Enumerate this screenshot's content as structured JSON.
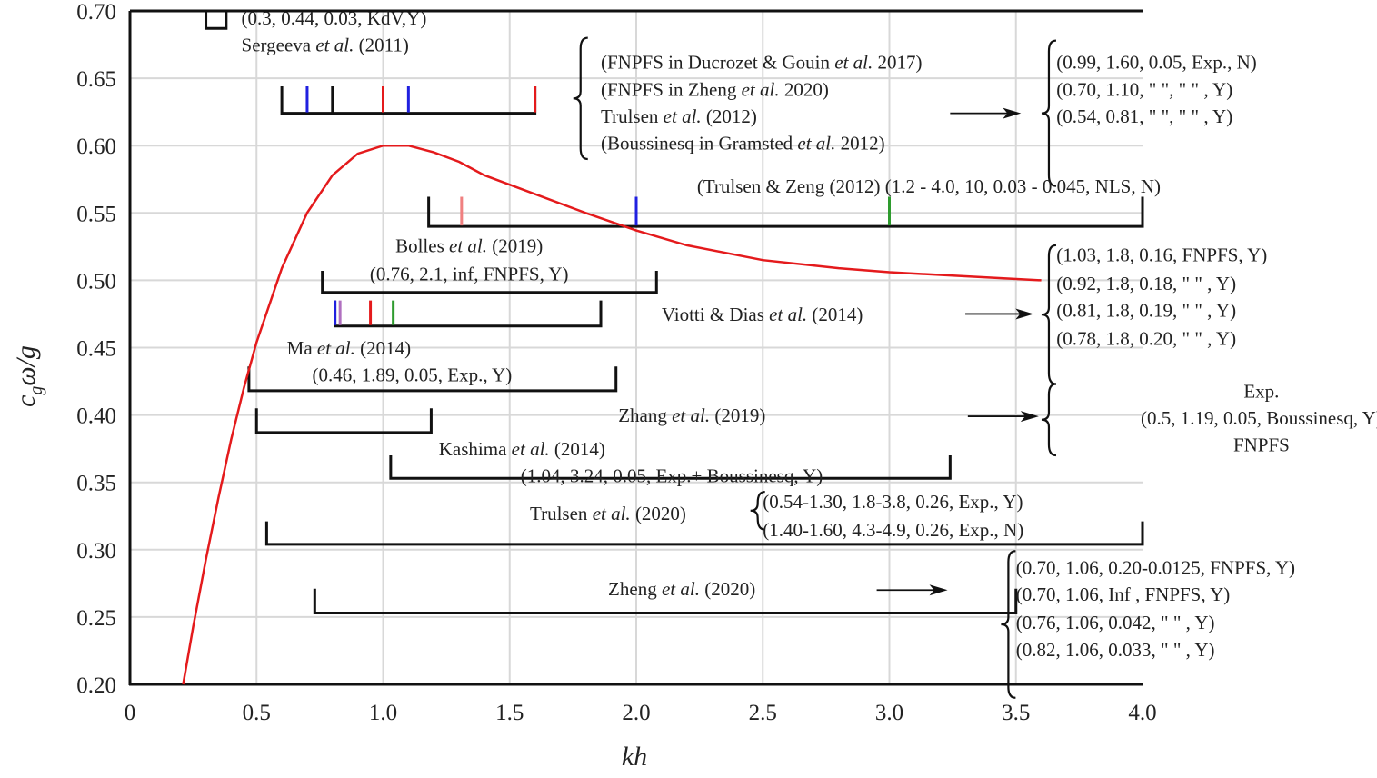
{
  "chart_data": {
    "type": "line",
    "xlabel": "kh",
    "ylabel": "cgω/g",
    "xlim": [
      0,
      4.0
    ],
    "ylim": [
      0.2,
      0.7
    ],
    "grid": true,
    "x_ticks": [
      "0",
      "0.5",
      "1.0",
      "1.5",
      "2.0",
      "2.5",
      "3.0",
      "3.5",
      "4.0"
    ],
    "y_ticks": [
      "0.20",
      "0.25",
      "0.30",
      "0.35",
      "0.40",
      "0.45",
      "0.50",
      "0.55",
      "0.60",
      "0.65",
      "0.70"
    ],
    "curve": {
      "color": "#e41a1c",
      "x": [
        0.21,
        0.25,
        0.3,
        0.35,
        0.4,
        0.45,
        0.5,
        0.6,
        0.7,
        0.8,
        0.9,
        1.0,
        1.1,
        1.2,
        1.3,
        1.4,
        1.6,
        1.8,
        2.0,
        2.2,
        2.5,
        2.8,
        3.0,
        3.3,
        3.6
      ],
      "y": [
        0.2,
        0.243,
        0.293,
        0.339,
        0.382,
        0.42,
        0.454,
        0.509,
        0.55,
        0.578,
        0.594,
        0.6,
        0.6,
        0.595,
        0.588,
        0.578,
        0.564,
        0.55,
        0.537,
        0.526,
        0.515,
        0.509,
        0.506,
        0.503,
        0.5
      ]
    },
    "brackets": [
      {
        "x0": 0.3,
        "x1": 0.38,
        "y": 0.687,
        "tick_height": 0.013,
        "ticks": []
      },
      {
        "x0": 0.6,
        "x1": 1.6,
        "y": 0.624,
        "tick_height": 0.02,
        "ticks": [
          {
            "x": 0.7,
            "color": "#2020e0"
          },
          {
            "x": 0.8,
            "color": "#111111"
          },
          {
            "x": 1.0,
            "color": "#e41a1c"
          },
          {
            "x": 1.1,
            "color": "#2020e0"
          },
          {
            "x": 1.6,
            "color": "#e41a1c"
          }
        ]
      },
      {
        "x0": 1.18,
        "x1": 4.0,
        "y": 0.54,
        "tick_height": 0.022,
        "ticks": [
          {
            "x": 1.31,
            "color": "#f08080"
          },
          {
            "x": 2.0,
            "color": "#2020e0"
          },
          {
            "x": 3.0,
            "color": "#2e9b2e"
          }
        ]
      },
      {
        "x0": 0.76,
        "x1": 2.08,
        "y": 0.491,
        "tick_height": 0.016,
        "ticks": []
      },
      {
        "x0": 0.81,
        "x1": 1.86,
        "y": 0.466,
        "tick_height": 0.019,
        "ticks": [
          {
            "x": 0.81,
            "color": "#2020e0"
          },
          {
            "x": 0.83,
            "color": "#b070c0"
          },
          {
            "x": 0.95,
            "color": "#e41a1c"
          },
          {
            "x": 1.04,
            "color": "#2e9b2e"
          }
        ]
      },
      {
        "x0": 0.47,
        "x1": 1.92,
        "y": 0.418,
        "tick_height": 0.018,
        "ticks": []
      },
      {
        "x0": 0.5,
        "x1": 1.19,
        "y": 0.387,
        "tick_height": 0.018,
        "ticks": []
      },
      {
        "x0": 1.03,
        "x1": 3.24,
        "y": 0.353,
        "tick_height": 0.017,
        "ticks": []
      },
      {
        "x0": 0.54,
        "x1": 4.0,
        "y": 0.304,
        "tick_height": 0.017,
        "ticks": []
      },
      {
        "x0": 0.73,
        "x1": 3.5,
        "y": 0.253,
        "tick_height": 0.018,
        "ticks": []
      }
    ],
    "arrows": [
      {
        "x0": 3.24,
        "x1": 3.52,
        "y": 0.624
      },
      {
        "x0": 3.3,
        "x1": 3.57,
        "y": 0.475
      },
      {
        "x0": 3.31,
        "x1": 3.59,
        "y": 0.399
      },
      {
        "x0": 2.95,
        "x1": 3.23,
        "y": 0.27
      }
    ],
    "curly_braces": [
      {
        "x": 1.78,
        "y_top": 0.68,
        "y_bottom": 0.59
      },
      {
        "x": 3.63,
        "y_top": 0.678,
        "y_bottom": 0.57
      },
      {
        "x": 3.63,
        "y_top": 0.526,
        "y_bottom": 0.423
      },
      {
        "x": 3.63,
        "y_top": 0.423,
        "y_bottom": 0.37
      },
      {
        "x": 2.48,
        "y_top": 0.343,
        "y_bottom": 0.315
      },
      {
        "x": 3.47,
        "y_top": 0.299,
        "y_bottom": 0.19
      }
    ],
    "annotations": [
      {
        "text": "(0.3, 0.44, 0.03, KdV,Y)",
        "x": 0.44,
        "y": 0.69,
        "anchor": "start"
      },
      {
        "text": "Sergeeva et al. (2011)",
        "x": 0.44,
        "y": 0.67,
        "anchor": "start"
      },
      {
        "text": "(FNPFS in Ducrozet & Gouin et al. 2017)",
        "x": 1.86,
        "y": 0.657,
        "anchor": "start"
      },
      {
        "text": "(FNPFS in Zheng et al. 2020)",
        "x": 1.86,
        "y": 0.637,
        "anchor": "start"
      },
      {
        "text": "Trulsen et al. (2012)",
        "x": 1.86,
        "y": 0.617,
        "anchor": "start"
      },
      {
        "text": "(Boussinesq in Gramsted et al. 2012)",
        "x": 1.86,
        "y": 0.597,
        "anchor": "start"
      },
      {
        "text": "(0.99, 1.60, 0.05, Exp., N)",
        "x": 3.66,
        "y": 0.657,
        "anchor": "start"
      },
      {
        "text": "(0.70, 1.10, \" \", \" \" , Y)",
        "x": 3.66,
        "y": 0.637,
        "anchor": "start"
      },
      {
        "text": "(0.54, 0.81, \" \", \" \" , Y)",
        "x": 3.66,
        "y": 0.617,
        "anchor": "start"
      },
      {
        "text": "(Trulsen & Zeng (2012) (1.2 - 4.0, 10, 0.03 - 0.045, NLS, N)",
        "x": 2.24,
        "y": 0.565,
        "anchor": "start"
      },
      {
        "text": "Bolles et al. (2019)",
        "x": 1.34,
        "y": 0.521,
        "anchor": "middle"
      },
      {
        "text": "(0.76, 2.1, inf, FNPFS, Y)",
        "x": 1.34,
        "y": 0.5,
        "anchor": "middle"
      },
      {
        "text": "Viotti & Dias et al. (2014)",
        "x": 2.1,
        "y": 0.47,
        "anchor": "start"
      },
      {
        "text": "(1.03, 1.8, 0.16, FNPFS, Y)",
        "x": 3.66,
        "y": 0.514,
        "anchor": "start"
      },
      {
        "text": "(0.92, 1.8, 0.18, \" \" , Y)",
        "x": 3.66,
        "y": 0.493,
        "anchor": "start"
      },
      {
        "text": "(0.81, 1.8, 0.19, \" \" , Y)",
        "x": 3.66,
        "y": 0.473,
        "anchor": "start"
      },
      {
        "text": "(0.78, 1.8, 0.20, \" \" , Y)",
        "x": 3.66,
        "y": 0.452,
        "anchor": "start"
      },
      {
        "text": "Ma et al. (2014)",
        "x": 0.62,
        "y": 0.445,
        "anchor": "start"
      },
      {
        "text": "(0.46, 1.89, 0.05, Exp., Y)",
        "x": 0.72,
        "y": 0.425,
        "anchor": "start"
      },
      {
        "text": "Zhang et al. (2019)",
        "x": 2.22,
        "y": 0.395,
        "anchor": "middle"
      },
      {
        "text": "Exp.",
        "x": 4.47,
        "y": 0.413,
        "anchor": "middle"
      },
      {
        "text": "(0.5, 1.19, 0.05, Boussinesq, Y)",
        "x": 4.47,
        "y": 0.393,
        "anchor": "middle"
      },
      {
        "text": "FNPFS",
        "x": 4.47,
        "y": 0.373,
        "anchor": "middle"
      },
      {
        "text": "Kashima et al. (2014)",
        "x": 1.22,
        "y": 0.37,
        "anchor": "start"
      },
      {
        "text": "(1.04, 3.24, 0.05, Exp.+ Boussinesq, Y)",
        "x": 2.14,
        "y": 0.35,
        "anchor": "middle"
      },
      {
        "text": "(0.54-1.30, 1.8-3.8, 0.26, Exp., Y)",
        "x": 2.5,
        "y": 0.331,
        "anchor": "start"
      },
      {
        "text": "Trulsen et al. (2020)",
        "x": 1.58,
        "y": 0.322,
        "anchor": "start"
      },
      {
        "text": "(1.40-1.60, 4.3-4.9, 0.26, Exp., N)",
        "x": 2.5,
        "y": 0.31,
        "anchor": "start"
      },
      {
        "text": "Zheng et al. (2020)",
        "x": 2.18,
        "y": 0.266,
        "anchor": "middle"
      },
      {
        "text": "(0.70, 1.06, 0.20-0.0125, FNPFS, Y)",
        "x": 3.5,
        "y": 0.282,
        "anchor": "start"
      },
      {
        "text": "(0.70, 1.06, Inf , FNPFS, Y)",
        "x": 3.5,
        "y": 0.262,
        "anchor": "start"
      },
      {
        "text": "(0.76, 1.06, 0.042, \" \" , Y)",
        "x": 3.5,
        "y": 0.241,
        "anchor": "start"
      },
      {
        "text": "(0.82, 1.06, 0.033, \" \" , Y)",
        "x": 3.5,
        "y": 0.221,
        "anchor": "start"
      }
    ]
  }
}
